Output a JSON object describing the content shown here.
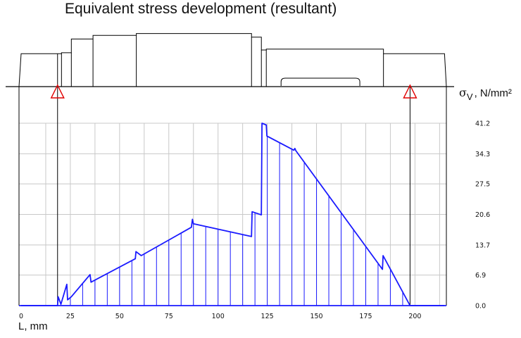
{
  "chart_data": {
    "type": "area",
    "title": "Equivalent stress development (resultant)",
    "ylabel": {
      "symbol": "σ",
      "subscript": "V",
      "unit": ", N/mm²"
    },
    "xlabel": "L, mm",
    "xlim": [
      0,
      215
    ],
    "ylim": [
      0,
      41.2
    ],
    "x_ticks": [
      "0",
      "25",
      "50",
      "75",
      "100",
      "125",
      "150",
      "175",
      "200"
    ],
    "y_ticks": [
      "41.2",
      "34.3",
      "27.5",
      "20.6",
      "13.7",
      "6.9",
      "0.0"
    ],
    "grid": true,
    "supports_mm": [
      18.5,
      197.5
    ],
    "series": [
      {
        "color": "#1a1aff",
        "x": [
          0,
          18.5,
          18.8,
          20.2,
          23.2,
          23.6,
          25.5,
          35.0,
          35.5,
          58.0,
          58.3,
          61.0,
          86.5,
          87.0,
          87.5,
          117.0,
          117.3,
          122.0,
          122.3,
          124.5,
          124.8,
          138.5,
          139.0,
          139.5,
          183.5,
          183.8,
          197.5,
          215
        ],
        "y": [
          0,
          0,
          2.0,
          0.3,
          4.8,
          1.3,
          2.0,
          7.0,
          5.3,
          10.6,
          12.2,
          11.3,
          17.7,
          19.5,
          18.5,
          15.6,
          21.2,
          20.5,
          41.2,
          40.8,
          38.3,
          35.1,
          35.5,
          35.0,
          8.2,
          11.3,
          0,
          0
        ]
      }
    ],
    "shaft_profile": [
      {
        "x0": 0,
        "x1": 18.5,
        "d": 18
      },
      {
        "x0": 18.5,
        "x1": 20.5,
        "d": 18
      },
      {
        "x0": 20.5,
        "x1": 25.5,
        "d": 18.5
      },
      {
        "x0": 25.5,
        "x1": 36.5,
        "d": 26
      },
      {
        "x0": 36.5,
        "x1": 58.5,
        "d": 28
      },
      {
        "x0": 58.5,
        "x1": 117,
        "d": 29
      },
      {
        "x0": 117,
        "x1": 122,
        "d": 27
      },
      {
        "x0": 122,
        "x1": 124.5,
        "d": 20
      },
      {
        "x0": 124.5,
        "x1": 184,
        "d": 20.5
      },
      {
        "x0": 184,
        "x1": 215,
        "d": 18
      }
    ],
    "keyway_mm": [
      132,
      172
    ]
  }
}
